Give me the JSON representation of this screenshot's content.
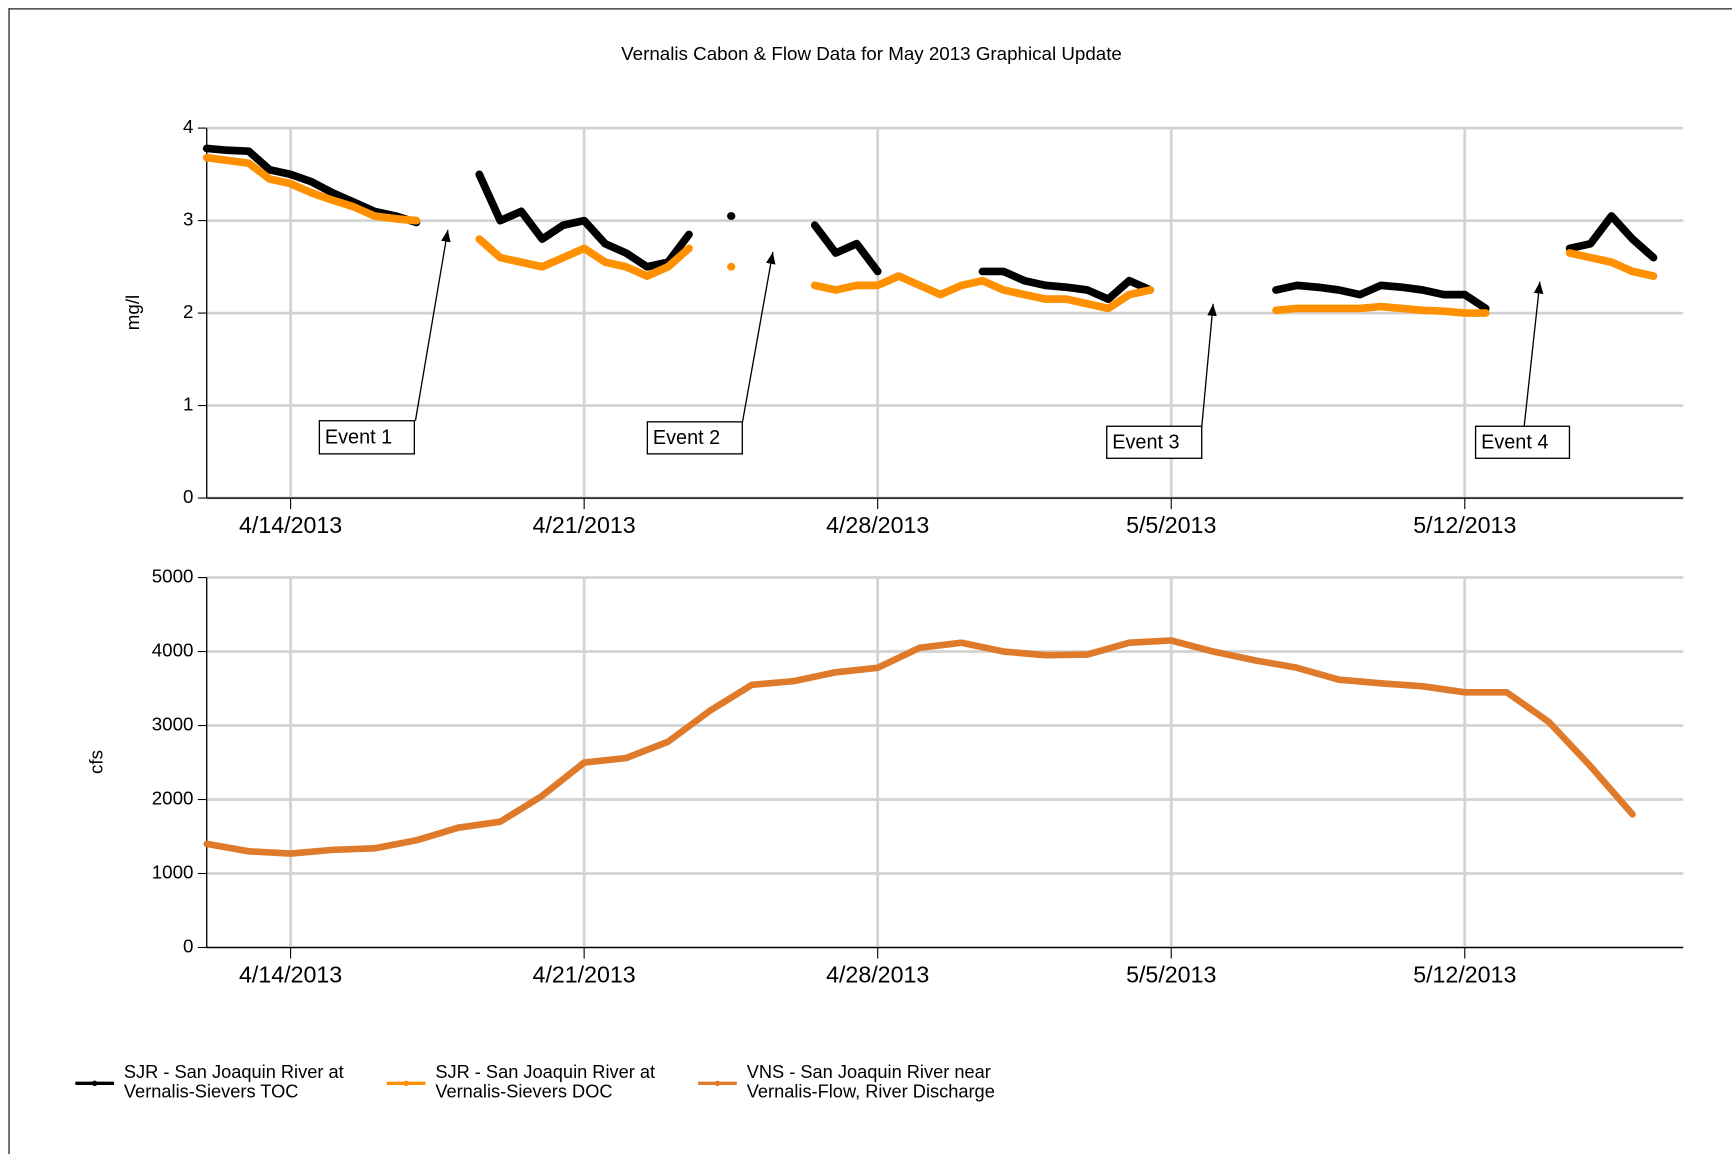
{
  "chart_data": [
    {
      "type": "line",
      "title": "Vernalis Cabon & Flow Data for May 2013 Graphical Update",
      "ylabel": "mg/l",
      "x": [
        "2013-04-12T00:00",
        "2013-04-12T12:00",
        "2013-04-13T00:00",
        "2013-04-13T12:00",
        "2013-04-14T00:00",
        "2013-04-14T12:00",
        "2013-04-15T00:00",
        "2013-04-15T12:00",
        "2013-04-16T00:00",
        "2013-04-16T12:00",
        "2013-04-17T00:00",
        "2013-04-17T12:00",
        "2013-04-18T00:00",
        "2013-04-18T12:00",
        "2013-04-19T00:00",
        "2013-04-19T12:00",
        "2013-04-20T00:00",
        "2013-04-20T12:00",
        "2013-04-21T00:00",
        "2013-04-21T12:00",
        "2013-04-22T00:00",
        "2013-04-22T12:00",
        "2013-04-23T00:00",
        "2013-04-23T12:00",
        "2013-04-24T00:00",
        "2013-04-24T12:00",
        "2013-04-25T00:00",
        "2013-04-25T12:00",
        "2013-04-26T00:00",
        "2013-04-26T12:00",
        "2013-04-27T00:00",
        "2013-04-27T12:00",
        "2013-04-28T00:00",
        "2013-04-28T12:00",
        "2013-04-29T00:00",
        "2013-04-29T12:00",
        "2013-04-30T00:00",
        "2013-04-30T12:00",
        "2013-05-01T00:00",
        "2013-05-01T12:00",
        "2013-05-02T00:00",
        "2013-05-02T12:00",
        "2013-05-03T00:00",
        "2013-05-03T12:00",
        "2013-05-04T00:00",
        "2013-05-04T12:00",
        "2013-05-05T00:00",
        "2013-05-05T12:00",
        "2013-05-06T00:00",
        "2013-05-06T12:00",
        "2013-05-07T00:00",
        "2013-05-07T12:00",
        "2013-05-08T00:00",
        "2013-05-08T12:00",
        "2013-05-09T00:00",
        "2013-05-09T12:00",
        "2013-05-10T00:00",
        "2013-05-10T12:00",
        "2013-05-11T00:00",
        "2013-05-11T12:00",
        "2013-05-12T00:00",
        "2013-05-12T12:00",
        "2013-05-13T00:00",
        "2013-05-13T12:00",
        "2013-05-14T00:00",
        "2013-05-14T12:00",
        "2013-05-15T00:00",
        "2013-05-15T12:00",
        "2013-05-16T00:00",
        "2013-05-16T12:00"
      ],
      "series": [
        {
          "name": "SJR - San Joaquin River at Vernalis-Sievers TOC",
          "color": "#000000",
          "values": [
            3.78,
            3.76,
            3.75,
            3.55,
            3.5,
            3.42,
            3.3,
            3.2,
            3.1,
            3.05,
            2.98,
            null,
            null,
            3.5,
            3.0,
            3.1,
            2.8,
            2.95,
            3.0,
            2.75,
            2.65,
            2.5,
            2.55,
            2.85,
            null,
            3.05,
            null,
            null,
            null,
            2.95,
            2.65,
            2.75,
            2.45,
            null,
            null,
            null,
            null,
            2.45,
            2.45,
            2.35,
            2.3,
            2.28,
            2.25,
            2.15,
            2.35,
            2.25,
            null,
            null,
            null,
            null,
            null,
            2.25,
            2.3,
            2.28,
            2.25,
            2.2,
            2.3,
            2.28,
            2.25,
            2.2,
            2.2,
            2.05,
            null,
            null,
            null,
            2.7,
            2.75,
            3.05,
            2.8,
            2.6
          ]
        },
        {
          "name": "SJR - San Joaquin River at Vernalis-Sievers DOC",
          "color": "#ff9100",
          "values": [
            3.68,
            3.65,
            3.62,
            3.45,
            3.4,
            3.3,
            3.22,
            3.15,
            3.05,
            3.02,
            3.0,
            null,
            null,
            2.8,
            2.6,
            2.55,
            2.5,
            2.6,
            2.7,
            2.55,
            2.5,
            2.4,
            2.5,
            2.7,
            null,
            2.5,
            null,
            null,
            null,
            2.3,
            2.25,
            2.3,
            2.3,
            2.4,
            2.3,
            2.2,
            2.3,
            2.35,
            2.25,
            2.2,
            2.15,
            2.15,
            2.1,
            2.05,
            2.2,
            2.25,
            null,
            null,
            null,
            null,
            null,
            2.03,
            2.05,
            2.05,
            2.05,
            2.05,
            2.07,
            2.05,
            2.03,
            2.02,
            2.0,
            2.0,
            null,
            null,
            null,
            2.65,
            2.6,
            2.55,
            2.45,
            2.4
          ]
        }
      ],
      "annotations": [
        {
          "text": "Event 1",
          "x": "2013-04-17T18:00",
          "y": 2.9
        },
        {
          "text": "Event 2",
          "x": "2013-04-25T12:00",
          "y": 2.66
        },
        {
          "text": "Event 3",
          "x": "2013-05-06T00:00",
          "y": 2.1
        },
        {
          "text": "Event 4",
          "x": "2013-05-13T19:00",
          "y": 2.34
        }
      ],
      "xlim": [
        "2013-04-12T00:00",
        "2013-05-17T05:00"
      ],
      "xticks": [
        {
          "value": "2013-04-14T00:00",
          "label": "4/14/2013"
        },
        {
          "value": "2013-04-21T00:00",
          "label": "4/21/2013"
        },
        {
          "value": "2013-04-28T00:00",
          "label": "4/28/2013"
        },
        {
          "value": "2013-05-05T00:00",
          "label": "5/5/2013"
        },
        {
          "value": "2013-05-12T00:00",
          "label": "5/12/2013"
        }
      ],
      "ylim": [
        0,
        4
      ],
      "yticks": [
        0,
        1,
        2,
        3,
        4
      ],
      "grid": true
    },
    {
      "type": "line",
      "ylabel": "cfs",
      "x": [
        "2013-04-12T00:00",
        "2013-04-13T00:00",
        "2013-04-14T00:00",
        "2013-04-15T00:00",
        "2013-04-16T00:00",
        "2013-04-17T00:00",
        "2013-04-18T00:00",
        "2013-04-19T00:00",
        "2013-04-20T00:00",
        "2013-04-21T00:00",
        "2013-04-22T00:00",
        "2013-04-23T00:00",
        "2013-04-24T00:00",
        "2013-04-25T00:00",
        "2013-04-26T00:00",
        "2013-04-27T00:00",
        "2013-04-28T00:00",
        "2013-04-29T00:00",
        "2013-04-30T00:00",
        "2013-05-01T00:00",
        "2013-05-02T00:00",
        "2013-05-03T00:00",
        "2013-05-04T00:00",
        "2013-05-05T00:00",
        "2013-05-06T00:00",
        "2013-05-07T00:00",
        "2013-05-08T00:00",
        "2013-05-09T00:00",
        "2013-05-10T00:00",
        "2013-05-11T00:00",
        "2013-05-12T00:00",
        "2013-05-13T00:00",
        "2013-05-14T00:00",
        "2013-05-15T00:00",
        "2013-05-16T00:00"
      ],
      "series": [
        {
          "name": "VNS - San Joaquin River near Vernalis-Flow, River Discharge",
          "color": "#df7a2a",
          "values": [
            1400,
            1300,
            1270,
            1320,
            1340,
            1450,
            1620,
            1700,
            2050,
            2500,
            2560,
            2780,
            3200,
            3550,
            3600,
            3720,
            3780,
            4050,
            4120,
            4000,
            3950,
            3960,
            4120,
            4150,
            4000,
            3880,
            3780,
            3620,
            3570,
            3530,
            3450,
            3450,
            3050,
            2450,
            1800
          ]
        }
      ],
      "xlim": [
        "2013-04-12T00:00",
        "2013-05-17T05:00"
      ],
      "xticks": [
        {
          "value": "2013-04-14T00:00",
          "label": "4/14/2013"
        },
        {
          "value": "2013-04-21T00:00",
          "label": "4/21/2013"
        },
        {
          "value": "2013-04-28T00:00",
          "label": "4/28/2013"
        },
        {
          "value": "2013-05-05T00:00",
          "label": "5/5/2013"
        },
        {
          "value": "2013-05-12T00:00",
          "label": "5/12/2013"
        }
      ],
      "ylim": [
        0,
        5000
      ],
      "yticks": [
        0,
        1000,
        2000,
        3000,
        4000,
        5000
      ],
      "grid": true
    }
  ]
}
